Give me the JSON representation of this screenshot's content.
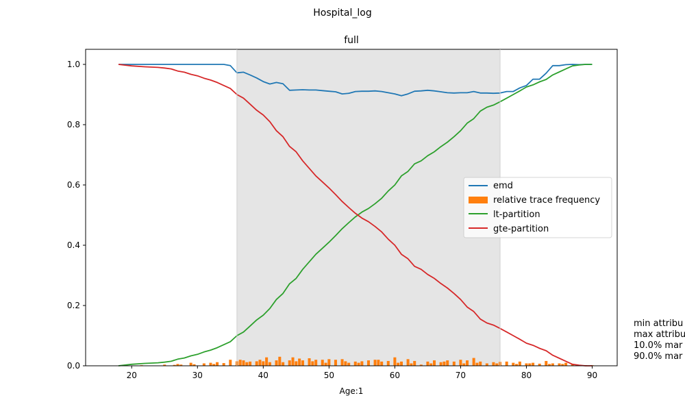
{
  "figure": {
    "suptitle": "Hospital_log",
    "side_text": [
      "min attribu",
      "max attribu",
      "10.0% mar",
      "90.0% mar"
    ]
  },
  "chart_data": {
    "type": "line",
    "title": "full",
    "xlabel": "Age:1",
    "ylabel": "",
    "xlim": [
      13,
      93.8
    ],
    "ylim": [
      0,
      1.05
    ],
    "xticks": [
      20,
      30,
      40,
      50,
      60,
      70,
      80,
      90
    ],
    "yticks": [
      0.0,
      0.2,
      0.4,
      0.6,
      0.8,
      1.0
    ],
    "grid": false,
    "legend_position": "center-right",
    "shaded_region": [
      36,
      76
    ],
    "colors": {
      "emd": "#1f77b4",
      "bars": "#ff7f0e",
      "lt": "#2ca02c",
      "gte": "#d62728",
      "shade": "#e5e5e5"
    },
    "series": [
      {
        "name": "emd",
        "kind": "line",
        "color": "#1f77b4",
        "x": [
          18,
          20,
          22,
          24,
          26,
          28,
          30,
          32,
          34,
          35,
          36,
          37,
          38,
          39,
          40,
          41,
          42,
          43,
          44,
          45,
          46,
          47,
          48,
          49,
          50,
          51,
          52,
          53,
          54,
          55,
          56,
          57,
          58,
          59,
          60,
          61,
          62,
          63,
          64,
          65,
          66,
          67,
          68,
          69,
          70,
          71,
          72,
          73,
          74,
          75,
          76,
          77,
          78,
          79,
          80,
          81,
          82,
          83,
          84,
          85,
          86,
          87,
          88,
          89,
          90
        ],
        "y": [
          1.0,
          1.0,
          1.0,
          1.0,
          1.0,
          1.0,
          1.0,
          1.0,
          1.0,
          0.996,
          0.972,
          0.974,
          0.965,
          0.955,
          0.943,
          0.935,
          0.94,
          0.936,
          0.914,
          0.915,
          0.916,
          0.915,
          0.915,
          0.913,
          0.911,
          0.909,
          0.902,
          0.904,
          0.91,
          0.911,
          0.911,
          0.912,
          0.91,
          0.906,
          0.902,
          0.896,
          0.902,
          0.911,
          0.912,
          0.914,
          0.912,
          0.909,
          0.906,
          0.905,
          0.906,
          0.906,
          0.91,
          0.905,
          0.905,
          0.904,
          0.905,
          0.91,
          0.91,
          0.922,
          0.93,
          0.951,
          0.951,
          0.971,
          0.996,
          0.996,
          0.999,
          1.0,
          0.999,
          1.0,
          1.0
        ]
      },
      {
        "name": "relative trace frequency",
        "kind": "bar",
        "color": "#ff7f0e",
        "x": [
          21.5,
          25,
          26.5,
          27,
          27.5,
          29,
          29.5,
          31,
          32,
          32.5,
          33,
          34,
          35,
          36,
          36.5,
          37,
          37.5,
          38,
          39,
          39.5,
          40,
          40.5,
          41,
          42,
          42.5,
          43,
          44,
          44.5,
          45,
          45.5,
          46,
          47,
          47.5,
          48,
          49,
          49.5,
          50,
          51,
          52,
          52.5,
          53,
          54,
          54.5,
          55,
          56,
          57,
          57.5,
          58,
          59,
          60,
          60.5,
          61,
          62,
          62.5,
          63,
          64,
          65,
          65.5,
          66,
          67,
          67.5,
          68,
          69,
          70,
          70.5,
          71,
          72,
          72.5,
          73,
          74,
          75,
          75.5,
          76,
          77,
          78,
          78.5,
          79,
          80,
          80.5,
          81,
          82,
          83,
          83.5,
          84,
          85,
          85.5,
          86,
          87,
          88,
          89,
          90
        ],
        "y": [
          0.002,
          0.004,
          0.003,
          0.006,
          0.004,
          0.01,
          0.005,
          0.008,
          0.01,
          0.006,
          0.012,
          0.009,
          0.02,
          0.015,
          0.02,
          0.018,
          0.012,
          0.014,
          0.015,
          0.02,
          0.015,
          0.028,
          0.012,
          0.018,
          0.03,
          0.012,
          0.018,
          0.028,
          0.015,
          0.024,
          0.018,
          0.025,
          0.015,
          0.02,
          0.02,
          0.01,
          0.022,
          0.02,
          0.022,
          0.015,
          0.01,
          0.014,
          0.01,
          0.015,
          0.018,
          0.02,
          0.02,
          0.014,
          0.016,
          0.028,
          0.01,
          0.014,
          0.022,
          0.008,
          0.016,
          0.004,
          0.014,
          0.008,
          0.018,
          0.012,
          0.014,
          0.018,
          0.014,
          0.02,
          0.008,
          0.018,
          0.026,
          0.01,
          0.014,
          0.008,
          0.012,
          0.008,
          0.013,
          0.014,
          0.01,
          0.006,
          0.014,
          0.008,
          0.008,
          0.01,
          0.007,
          0.016,
          0.006,
          0.008,
          0.008,
          0.006,
          0.01,
          0.005,
          0.003,
          0.002,
          0.002
        ]
      },
      {
        "name": "lt-partition",
        "kind": "line",
        "color": "#2ca02c",
        "x": [
          18,
          20,
          22,
          24,
          25,
          26,
          27,
          28,
          29,
          30,
          31,
          32,
          33,
          34,
          35,
          36,
          37,
          38,
          39,
          40,
          41,
          42,
          43,
          44,
          45,
          46,
          47,
          48,
          49,
          50,
          51,
          52,
          53,
          54,
          55,
          56,
          57,
          58,
          59,
          60,
          61,
          62,
          63,
          64,
          65,
          66,
          67,
          68,
          69,
          70,
          71,
          72,
          73,
          74,
          75,
          76,
          77,
          78,
          79,
          80,
          81,
          82,
          83,
          84,
          85,
          86,
          87,
          88,
          89,
          90
        ],
        "y": [
          0.0,
          0.005,
          0.008,
          0.01,
          0.012,
          0.015,
          0.022,
          0.026,
          0.033,
          0.038,
          0.046,
          0.052,
          0.06,
          0.07,
          0.08,
          0.1,
          0.112,
          0.132,
          0.152,
          0.168,
          0.19,
          0.22,
          0.24,
          0.272,
          0.29,
          0.32,
          0.345,
          0.37,
          0.39,
          0.41,
          0.432,
          0.455,
          0.475,
          0.494,
          0.51,
          0.522,
          0.538,
          0.556,
          0.58,
          0.6,
          0.63,
          0.645,
          0.67,
          0.68,
          0.697,
          0.71,
          0.727,
          0.742,
          0.76,
          0.78,
          0.805,
          0.82,
          0.845,
          0.858,
          0.865,
          0.876,
          0.888,
          0.9,
          0.912,
          0.925,
          0.932,
          0.942,
          0.95,
          0.965,
          0.975,
          0.985,
          0.995,
          0.998,
          1.0,
          1.0
        ]
      },
      {
        "name": "gte-partition",
        "kind": "line",
        "color": "#d62728",
        "x": [
          18,
          20,
          22,
          24,
          25,
          26,
          27,
          28,
          29,
          30,
          31,
          32,
          33,
          34,
          35,
          36,
          37,
          38,
          39,
          40,
          41,
          42,
          43,
          44,
          45,
          46,
          47,
          48,
          49,
          50,
          51,
          52,
          53,
          54,
          55,
          56,
          57,
          58,
          59,
          60,
          61,
          62,
          63,
          64,
          65,
          66,
          67,
          68,
          69,
          70,
          71,
          72,
          73,
          74,
          75,
          76,
          77,
          78,
          79,
          80,
          81,
          82,
          83,
          84,
          85,
          86,
          87,
          88,
          89,
          90
        ],
        "y": [
          1.0,
          0.995,
          0.992,
          0.99,
          0.988,
          0.985,
          0.978,
          0.974,
          0.967,
          0.962,
          0.954,
          0.948,
          0.94,
          0.93,
          0.92,
          0.9,
          0.888,
          0.868,
          0.848,
          0.832,
          0.81,
          0.78,
          0.76,
          0.728,
          0.71,
          0.68,
          0.655,
          0.63,
          0.61,
          0.59,
          0.568,
          0.545,
          0.525,
          0.506,
          0.49,
          0.478,
          0.462,
          0.444,
          0.42,
          0.4,
          0.37,
          0.355,
          0.33,
          0.32,
          0.303,
          0.29,
          0.273,
          0.258,
          0.24,
          0.22,
          0.195,
          0.18,
          0.155,
          0.142,
          0.135,
          0.124,
          0.112,
          0.1,
          0.088,
          0.075,
          0.068,
          0.058,
          0.05,
          0.035,
          0.025,
          0.015,
          0.005,
          0.002,
          0.0,
          0.0
        ]
      }
    ]
  }
}
